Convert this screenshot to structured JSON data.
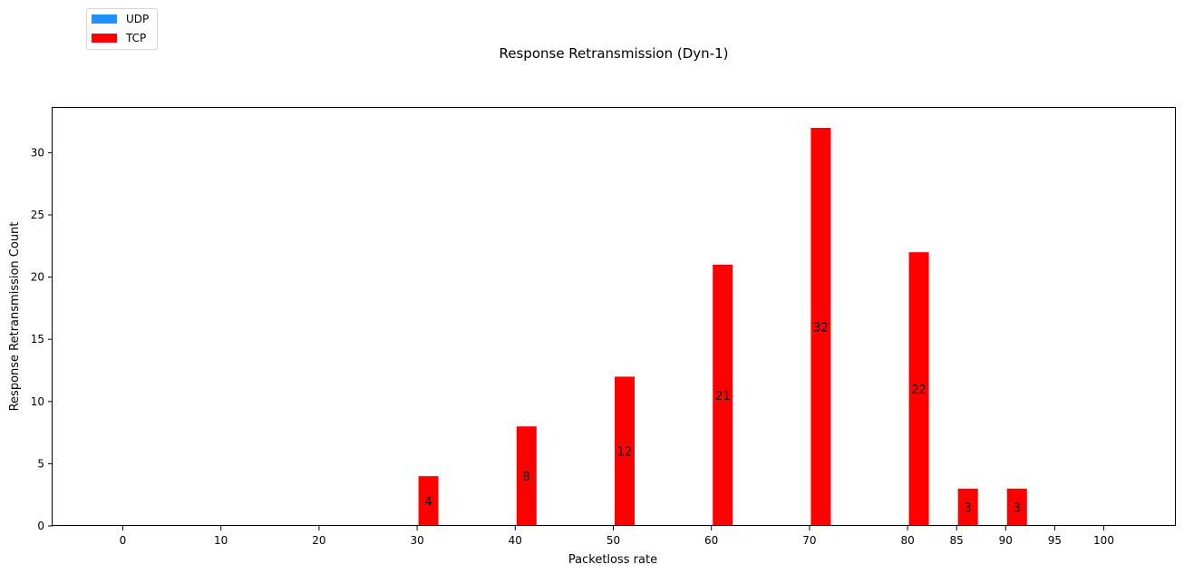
{
  "chart_data": {
    "type": "bar",
    "title": "Response Retransmission (Dyn-1)",
    "xlabel": "Packetloss rate",
    "ylabel": "Response Retransmission Count",
    "x_ticks": [
      "0",
      "10",
      "20",
      "30",
      "40",
      "50",
      "60",
      "70",
      "80",
      "85",
      "90",
      "95",
      "100"
    ],
    "y_ticks": [
      "0",
      "5",
      "10",
      "15",
      "20",
      "25",
      "30"
    ],
    "ylim": [
      0,
      33.6
    ],
    "grid": false,
    "legend_placement": "top-left",
    "series": [
      {
        "name": "UDP",
        "color": "#1e90ff",
        "points": []
      },
      {
        "name": "TCP",
        "color": "#ff0000",
        "points": [
          {
            "x": "30",
            "value": 4
          },
          {
            "x": "40",
            "value": 8
          },
          {
            "x": "50",
            "value": 12
          },
          {
            "x": "60",
            "value": 21
          },
          {
            "x": "70",
            "value": 32
          },
          {
            "x": "80",
            "value": 22
          },
          {
            "x": "85",
            "value": 3
          },
          {
            "x": "90",
            "value": 3
          }
        ]
      }
    ]
  }
}
